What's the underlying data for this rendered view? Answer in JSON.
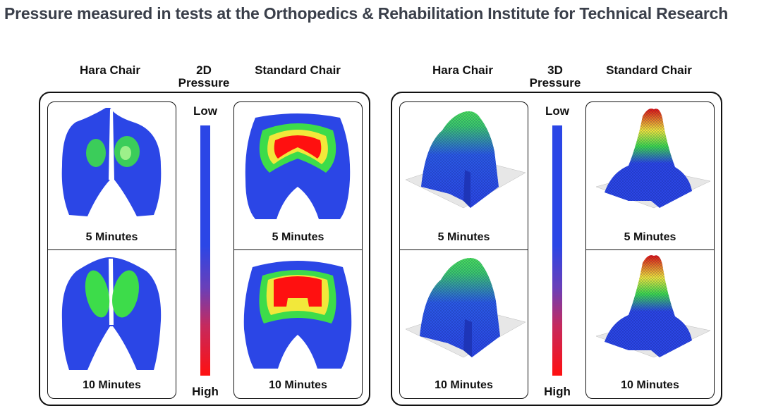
{
  "title": "Pressure measured in tests at the Orthopedics & Rehabilitation Institute for Technical Research",
  "groups": [
    {
      "mode_line1": "2D",
      "mode_line2": "Pressure",
      "left_label": "Hara Chair",
      "right_label": "Standard Chair",
      "scale_low": "Low",
      "scale_high": "High",
      "cells": {
        "top": "5 Minutes",
        "bottom": "10 Minutes"
      }
    },
    {
      "mode_line1": "3D",
      "mode_line2": "Pressure",
      "left_label": "Hara Chair",
      "right_label": "Standard Chair",
      "scale_low": "Low",
      "scale_high": "High",
      "cells": {
        "top": "5 Minutes",
        "bottom": "10 Minutes"
      }
    }
  ],
  "colors": {
    "low": "#2b46e6",
    "mid": "#3ddc4a",
    "high_mid": "#f2e83a",
    "high": "#ff1010"
  }
}
